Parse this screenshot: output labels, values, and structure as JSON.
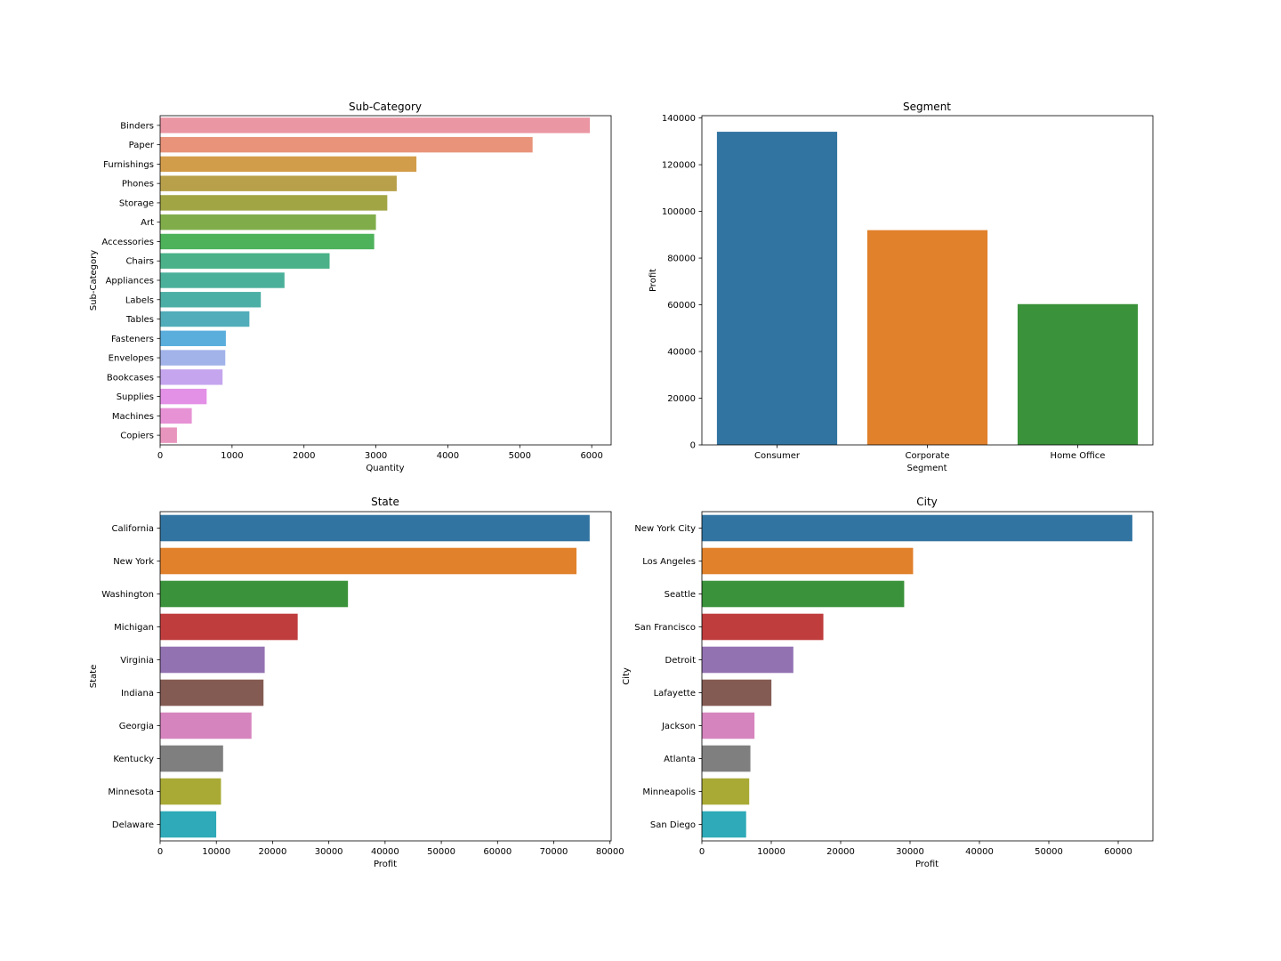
{
  "chart_data": [
    {
      "type": "bar",
      "orientation": "horizontal",
      "title": "Sub-Category",
      "xlabel": "Quantity",
      "ylabel": "Sub-Category",
      "xlim": [
        0,
        6270
      ],
      "xticks": [
        0,
        1000,
        2000,
        3000,
        4000,
        5000,
        6000
      ],
      "categories": [
        "Binders",
        "Paper",
        "Furnishings",
        "Phones",
        "Storage",
        "Art",
        "Accessories",
        "Chairs",
        "Appliances",
        "Labels",
        "Tables",
        "Fasteners",
        "Envelopes",
        "Bookcases",
        "Supplies",
        "Machines",
        "Copiers"
      ],
      "values": [
        5974,
        5178,
        3563,
        3289,
        3158,
        3000,
        2976,
        2356,
        1729,
        1400,
        1241,
        914,
        906,
        868,
        647,
        440,
        234
      ],
      "colors": [
        "#ea96a3",
        "#e8937a",
        "#d29d4a",
        "#b8a04a",
        "#a2a544",
        "#80ad4a",
        "#4db25a",
        "#4ab188",
        "#4bb09a",
        "#4cafa5",
        "#52adba",
        "#5aaedc",
        "#a2b3ea",
        "#c5a5ee",
        "#e391e6",
        "#e792d4",
        "#e895bd"
      ]
    },
    {
      "type": "bar",
      "orientation": "vertical",
      "title": "Segment",
      "xlabel": "Segment",
      "ylabel": "Profit",
      "ylim": [
        0,
        141000
      ],
      "yticks": [
        0,
        20000,
        40000,
        60000,
        80000,
        100000,
        120000,
        140000
      ],
      "categories": [
        "Consumer",
        "Corporate",
        "Home Office"
      ],
      "values": [
        134119,
        91979,
        60299
      ],
      "colors": [
        "#3274a1",
        "#e1812c",
        "#3a923a"
      ]
    },
    {
      "type": "bar",
      "orientation": "horizontal",
      "title": "State",
      "xlabel": "Profit",
      "ylabel": "State",
      "xlim": [
        0,
        80200
      ],
      "xticks": [
        0,
        10000,
        20000,
        30000,
        40000,
        50000,
        60000,
        70000,
        80000
      ],
      "categories": [
        "California",
        "New York",
        "Washington",
        "Michigan",
        "Virginia",
        "Indiana",
        "Georgia",
        "Kentucky",
        "Minnesota",
        "Delaware"
      ],
      "values": [
        76381,
        74039,
        33403,
        24463,
        18598,
        18383,
        16250,
        11200,
        10823,
        9977
      ],
      "colors": [
        "#3274a1",
        "#e1812c",
        "#3a923a",
        "#c03d3e",
        "#9372b2",
        "#845b53",
        "#d684bd",
        "#7f7f7f",
        "#a9aa35",
        "#2eaab8"
      ]
    },
    {
      "type": "bar",
      "orientation": "horizontal",
      "title": "City",
      "xlabel": "Profit",
      "ylabel": "City",
      "xlim": [
        0,
        65000
      ],
      "xticks": [
        0,
        10000,
        20000,
        30000,
        40000,
        50000,
        60000
      ],
      "categories": [
        "New York City",
        "Los Angeles",
        "Seattle",
        "San Francisco",
        "Detroit",
        "Lafayette",
        "Jackson",
        "Atlanta",
        "Minneapolis",
        "San Diego"
      ],
      "values": [
        62037,
        30441,
        29156,
        17508,
        13181,
        10019,
        7582,
        6994,
        6824,
        6377
      ],
      "colors": [
        "#3274a1",
        "#e1812c",
        "#3a923a",
        "#c03d3e",
        "#9372b2",
        "#845b53",
        "#d684bd",
        "#7f7f7f",
        "#a9aa35",
        "#2eaab8"
      ]
    }
  ]
}
